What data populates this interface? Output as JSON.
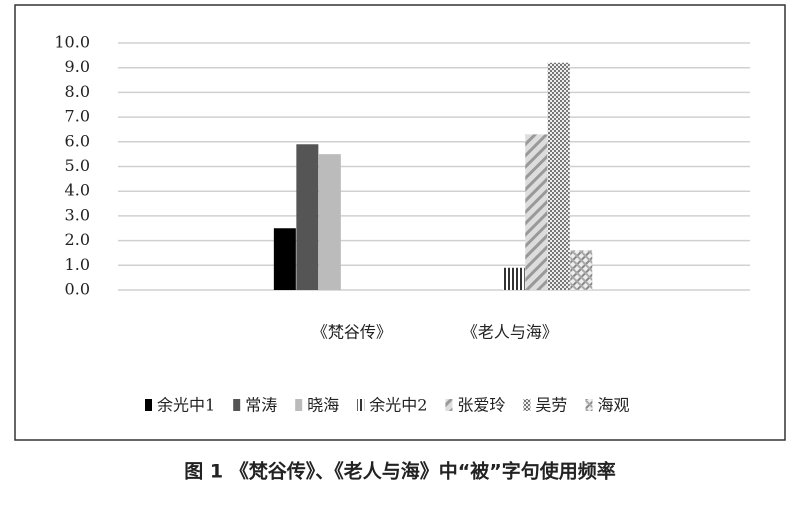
{
  "chart_data": {
    "type": "bar",
    "title": "图 1 《梵谷传》、《老人与海》中“被”字句使用频率",
    "categories": [
      "《梵谷传》",
      "《老人与海》"
    ],
    "series": [
      {
        "name": "余光中1",
        "color": "#000000",
        "values": [
          2.5,
          null
        ]
      },
      {
        "name": "常涛",
        "color": "#555555",
        "values": [
          5.9,
          null
        ]
      },
      {
        "name": "晓海",
        "color": "#bbbbbb",
        "values": [
          5.5,
          null
        ]
      },
      {
        "name": "余光中2",
        "color": "#333333",
        "values": [
          null,
          0.9
        ]
      },
      {
        "name": "张爱玲",
        "color": "#999999",
        "values": [
          null,
          6.3
        ]
      },
      {
        "name": "吴劳",
        "color": "#777777",
        "values": [
          null,
          9.2
        ]
      },
      {
        "name": "海观",
        "color": "#888888",
        "values": [
          null,
          1.6
        ]
      }
    ],
    "ylim": [
      0,
      10
    ],
    "yticks": [
      {
        "value": 0,
        "label": "0.0"
      },
      {
        "value": 1,
        "label": "1.0"
      },
      {
        "value": 2,
        "label": "2.0"
      },
      {
        "value": 3,
        "label": "3.0"
      },
      {
        "value": 4,
        "label": "4.0"
      },
      {
        "value": 5,
        "label": "5.0"
      },
      {
        "value": 6,
        "label": "6.0"
      },
      {
        "value": 7,
        "label": "7.0"
      },
      {
        "value": 8,
        "label": "8.0"
      },
      {
        "value": 9,
        "label": "9.0"
      },
      {
        "value": 10,
        "label": "10.0"
      }
    ],
    "grid": true
  }
}
